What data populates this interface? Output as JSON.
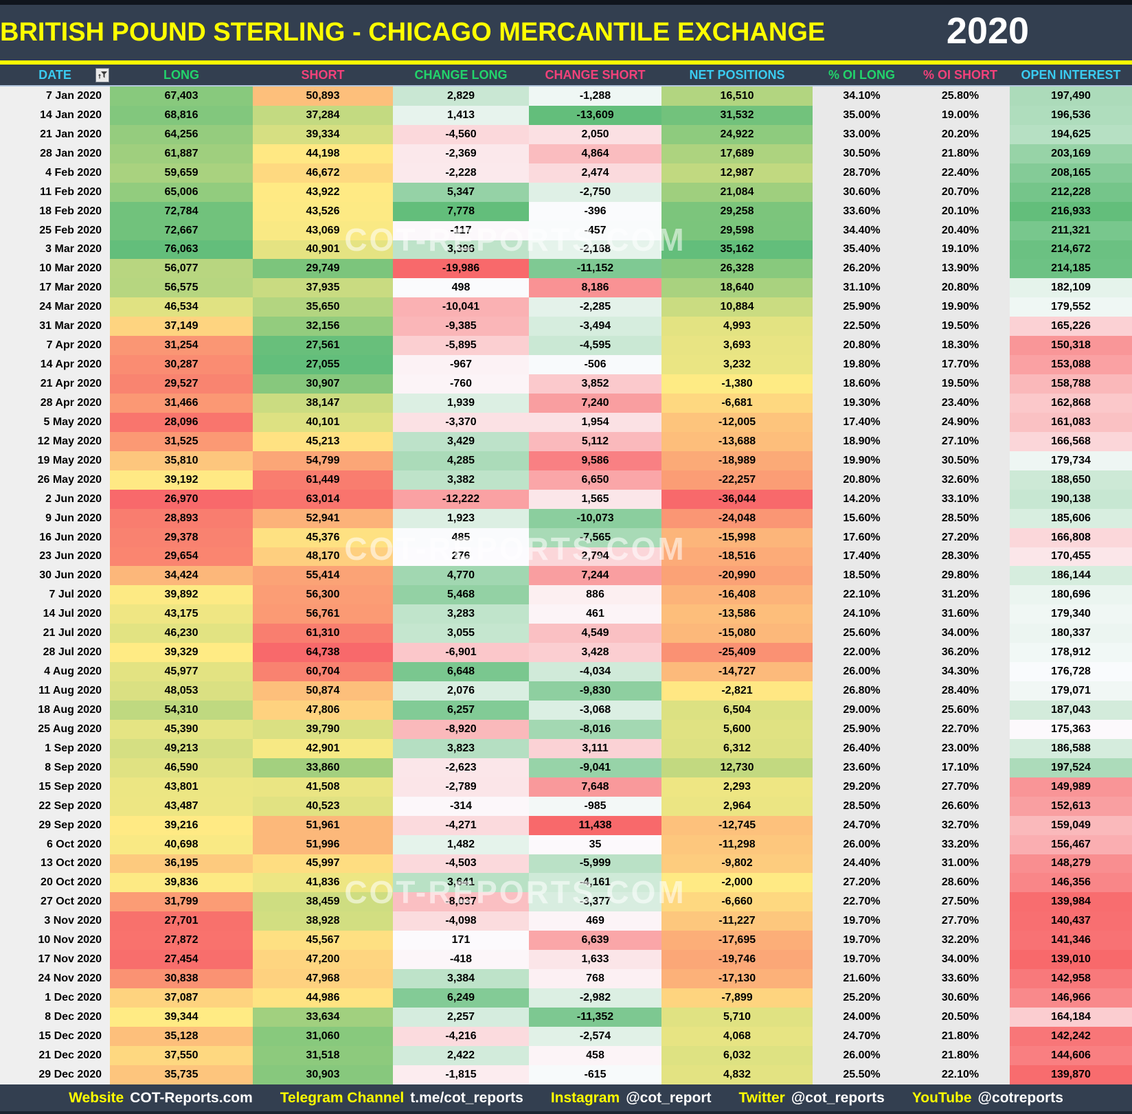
{
  "header": {
    "title": "BRITISH POUND STERLING - CHICAGO MERCANTILE EXCHANGE",
    "year": "2020"
  },
  "columns": [
    {
      "key": "date",
      "label": "DATE",
      "label_color": "#3ACBF0"
    },
    {
      "key": "long",
      "label": "LONG",
      "label_color": "#22D36B"
    },
    {
      "key": "short",
      "label": "SHORT",
      "label_color": "#F2417A"
    },
    {
      "key": "chg_long",
      "label": "CHANGE LONG",
      "label_color": "#22D36B"
    },
    {
      "key": "chg_short",
      "label": "CHANGE SHORT",
      "label_color": "#F2417A"
    },
    {
      "key": "net",
      "label": "NET POSITIONS",
      "label_color": "#3ACBF0"
    },
    {
      "key": "pct_long",
      "label": "% OI LONG",
      "label_color": "#22D36B"
    },
    {
      "key": "pct_short",
      "label": "% OI SHORT",
      "label_color": "#F2417A"
    },
    {
      "key": "oi",
      "label": "OPEN INTEREST",
      "label_color": "#3ACBF0"
    }
  ],
  "rows": [
    [
      "7 Jan 2020",
      "67,403",
      "50,893",
      "2,829",
      "-1,288",
      "16,510",
      "34.10%",
      "25.80%",
      "197,490"
    ],
    [
      "14 Jan 2020",
      "68,816",
      "37,284",
      "1,413",
      "-13,609",
      "31,532",
      "35.00%",
      "19.00%",
      "196,536"
    ],
    [
      "21 Jan 2020",
      "64,256",
      "39,334",
      "-4,560",
      "2,050",
      "24,922",
      "33.00%",
      "20.20%",
      "194,625"
    ],
    [
      "28 Jan 2020",
      "61,887",
      "44,198",
      "-2,369",
      "4,864",
      "17,689",
      "30.50%",
      "21.80%",
      "203,169"
    ],
    [
      "4 Feb 2020",
      "59,659",
      "46,672",
      "-2,228",
      "2,474",
      "12,987",
      "28.70%",
      "22.40%",
      "208,165"
    ],
    [
      "11 Feb 2020",
      "65,006",
      "43,922",
      "5,347",
      "-2,750",
      "21,084",
      "30.60%",
      "20.70%",
      "212,228"
    ],
    [
      "18 Feb 2020",
      "72,784",
      "43,526",
      "7,778",
      "-396",
      "29,258",
      "33.60%",
      "20.10%",
      "216,933"
    ],
    [
      "25 Feb 2020",
      "72,667",
      "43,069",
      "-117",
      "-457",
      "29,598",
      "34.40%",
      "20.40%",
      "211,321"
    ],
    [
      "3 Mar 2020",
      "76,063",
      "40,901",
      "3,396",
      "-2,168",
      "35,162",
      "35.40%",
      "19.10%",
      "214,672"
    ],
    [
      "10 Mar 2020",
      "56,077",
      "29,749",
      "-19,986",
      "-11,152",
      "26,328",
      "26.20%",
      "13.90%",
      "214,185"
    ],
    [
      "17 Mar 2020",
      "56,575",
      "37,935",
      "498",
      "8,186",
      "18,640",
      "31.10%",
      "20.80%",
      "182,109"
    ],
    [
      "24 Mar 2020",
      "46,534",
      "35,650",
      "-10,041",
      "-2,285",
      "10,884",
      "25.90%",
      "19.90%",
      "179,552"
    ],
    [
      "31 Mar 2020",
      "37,149",
      "32,156",
      "-9,385",
      "-3,494",
      "4,993",
      "22.50%",
      "19.50%",
      "165,226"
    ],
    [
      "7 Apr 2020",
      "31,254",
      "27,561",
      "-5,895",
      "-4,595",
      "3,693",
      "20.80%",
      "18.30%",
      "150,318"
    ],
    [
      "14 Apr 2020",
      "30,287",
      "27,055",
      "-967",
      "-506",
      "3,232",
      "19.80%",
      "17.70%",
      "153,088"
    ],
    [
      "21 Apr 2020",
      "29,527",
      "30,907",
      "-760",
      "3,852",
      "-1,380",
      "18.60%",
      "19.50%",
      "158,788"
    ],
    [
      "28 Apr 2020",
      "31,466",
      "38,147",
      "1,939",
      "7,240",
      "-6,681",
      "19.30%",
      "23.40%",
      "162,868"
    ],
    [
      "5 May 2020",
      "28,096",
      "40,101",
      "-3,370",
      "1,954",
      "-12,005",
      "17.40%",
      "24.90%",
      "161,083"
    ],
    [
      "12 May 2020",
      "31,525",
      "45,213",
      "3,429",
      "5,112",
      "-13,688",
      "18.90%",
      "27.10%",
      "166,568"
    ],
    [
      "19 May 2020",
      "35,810",
      "54,799",
      "4,285",
      "9,586",
      "-18,989",
      "19.90%",
      "30.50%",
      "179,734"
    ],
    [
      "26 May 2020",
      "39,192",
      "61,449",
      "3,382",
      "6,650",
      "-22,257",
      "20.80%",
      "32.60%",
      "188,650"
    ],
    [
      "2 Jun 2020",
      "26,970",
      "63,014",
      "-12,222",
      "1,565",
      "-36,044",
      "14.20%",
      "33.10%",
      "190,138"
    ],
    [
      "9 Jun 2020",
      "28,893",
      "52,941",
      "1,923",
      "-10,073",
      "-24,048",
      "15.60%",
      "28.50%",
      "185,606"
    ],
    [
      "16 Jun 2020",
      "29,378",
      "45,376",
      "485",
      "-7,565",
      "-15,998",
      "17.60%",
      "27.20%",
      "166,808"
    ],
    [
      "23 Jun 2020",
      "29,654",
      "48,170",
      "276",
      "2,794",
      "-18,516",
      "17.40%",
      "28.30%",
      "170,455"
    ],
    [
      "30 Jun 2020",
      "34,424",
      "55,414",
      "4,770",
      "7,244",
      "-20,990",
      "18.50%",
      "29.80%",
      "186,144"
    ],
    [
      "7 Jul 2020",
      "39,892",
      "56,300",
      "5,468",
      "886",
      "-16,408",
      "22.10%",
      "31.20%",
      "180,696"
    ],
    [
      "14 Jul 2020",
      "43,175",
      "56,761",
      "3,283",
      "461",
      "-13,586",
      "24.10%",
      "31.60%",
      "179,340"
    ],
    [
      "21 Jul 2020",
      "46,230",
      "61,310",
      "3,055",
      "4,549",
      "-15,080",
      "25.60%",
      "34.00%",
      "180,337"
    ],
    [
      "28 Jul 2020",
      "39,329",
      "64,738",
      "-6,901",
      "3,428",
      "-25,409",
      "22.00%",
      "36.20%",
      "178,912"
    ],
    [
      "4 Aug 2020",
      "45,977",
      "60,704",
      "6,648",
      "-4,034",
      "-14,727",
      "26.00%",
      "34.30%",
      "176,728"
    ],
    [
      "11 Aug 2020",
      "48,053",
      "50,874",
      "2,076",
      "-9,830",
      "-2,821",
      "26.80%",
      "28.40%",
      "179,071"
    ],
    [
      "18 Aug 2020",
      "54,310",
      "47,806",
      "6,257",
      "-3,068",
      "6,504",
      "29.00%",
      "25.60%",
      "187,043"
    ],
    [
      "25 Aug 2020",
      "45,390",
      "39,790",
      "-8,920",
      "-8,016",
      "5,600",
      "25.90%",
      "22.70%",
      "175,363"
    ],
    [
      "1 Sep 2020",
      "49,213",
      "42,901",
      "3,823",
      "3,111",
      "6,312",
      "26.40%",
      "23.00%",
      "186,588"
    ],
    [
      "8 Sep 2020",
      "46,590",
      "33,860",
      "-2,623",
      "-9,041",
      "12,730",
      "23.60%",
      "17.10%",
      "197,524"
    ],
    [
      "15 Sep 2020",
      "43,801",
      "41,508",
      "-2,789",
      "7,648",
      "2,293",
      "29.20%",
      "27.70%",
      "149,989"
    ],
    [
      "22 Sep 2020",
      "43,487",
      "40,523",
      "-314",
      "-985",
      "2,964",
      "28.50%",
      "26.60%",
      "152,613"
    ],
    [
      "29 Sep 2020",
      "39,216",
      "51,961",
      "-4,271",
      "11,438",
      "-12,745",
      "24.70%",
      "32.70%",
      "159,049"
    ],
    [
      "6 Oct 2020",
      "40,698",
      "51,996",
      "1,482",
      "35",
      "-11,298",
      "26.00%",
      "33.20%",
      "156,467"
    ],
    [
      "13 Oct 2020",
      "36,195",
      "45,997",
      "-4,503",
      "-5,999",
      "-9,802",
      "24.40%",
      "31.00%",
      "148,279"
    ],
    [
      "20 Oct 2020",
      "39,836",
      "41,836",
      "3,641",
      "-4,161",
      "-2,000",
      "27.20%",
      "28.60%",
      "146,356"
    ],
    [
      "27 Oct 2020",
      "31,799",
      "38,459",
      "-8,037",
      "-3,377",
      "-6,660",
      "22.70%",
      "27.50%",
      "139,984"
    ],
    [
      "3 Nov 2020",
      "27,701",
      "38,928",
      "-4,098",
      "469",
      "-11,227",
      "19.70%",
      "27.70%",
      "140,437"
    ],
    [
      "10 Nov 2020",
      "27,872",
      "45,567",
      "171",
      "6,639",
      "-17,695",
      "19.70%",
      "32.20%",
      "141,346"
    ],
    [
      "17 Nov 2020",
      "27,454",
      "47,200",
      "-418",
      "1,633",
      "-19,746",
      "19.70%",
      "34.00%",
      "139,010"
    ],
    [
      "24 Nov 2020",
      "30,838",
      "47,968",
      "3,384",
      "768",
      "-17,130",
      "21.60%",
      "33.60%",
      "142,958"
    ],
    [
      "1 Dec 2020",
      "37,087",
      "44,986",
      "6,249",
      "-2,982",
      "-7,899",
      "25.20%",
      "30.60%",
      "146,966"
    ],
    [
      "8 Dec 2020",
      "39,344",
      "33,634",
      "2,257",
      "-11,352",
      "5,710",
      "24.00%",
      "20.50%",
      "164,184"
    ],
    [
      "15 Dec 2020",
      "35,128",
      "31,060",
      "-4,216",
      "-2,574",
      "4,068",
      "24.70%",
      "21.80%",
      "142,242"
    ],
    [
      "21 Dec 2020",
      "37,550",
      "31,518",
      "2,422",
      "458",
      "6,032",
      "26.00%",
      "21.80%",
      "144,606"
    ],
    [
      "29 Dec 2020",
      "35,735",
      "30,903",
      "-1,815",
      "-615",
      "4,832",
      "25.50%",
      "22.10%",
      "139,870"
    ]
  ],
  "scales": {
    "1": "ryg",
    "2": "gyr",
    "3": "rwg",
    "4": "gwr",
    "5": "ryg",
    "8": "rwg"
  },
  "colors": {
    "navy": "#333F50",
    "accent_yellow": "#FFFF00",
    "scale_red": "#F8696B",
    "scale_yellow": "#FFEB84",
    "scale_green": "#63BE7B",
    "scale_white": "#FCFCFF",
    "pct_bg": "#E9E9E9",
    "date_bg": "#EFEFEF"
  },
  "watermark": {
    "text": "COT-REPORTS.COM"
  },
  "footer": {
    "items": [
      {
        "label": "Website",
        "value": "COT-Reports.com"
      },
      {
        "label": "Telegram Channel",
        "value": "t.me/cot_reports"
      },
      {
        "label": "Instagram",
        "value": "@cot_report"
      },
      {
        "label": "Twitter",
        "value": "@cot_reports"
      },
      {
        "label": "YouTube",
        "value": "@cotreports"
      }
    ]
  }
}
